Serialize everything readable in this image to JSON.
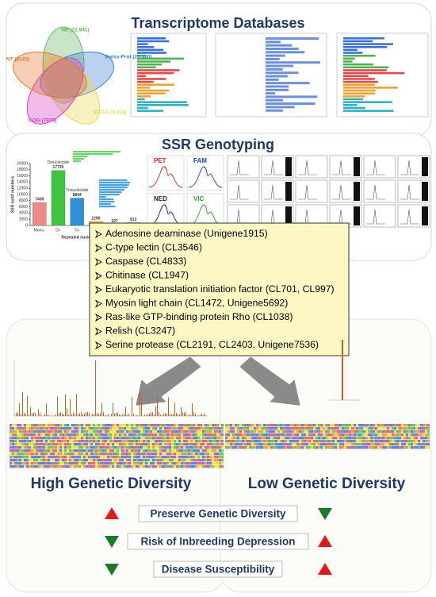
{
  "top_panel": {
    "title": "Transcriptome Databases",
    "venn": [
      {
        "label": "NR (22,941)",
        "color": "#5cb85c"
      },
      {
        "label": "Swiss-Prot (21,320)",
        "color": "#3a7fd5"
      },
      {
        "label": "KEGG (9,114)",
        "color": "#e8d84a"
      },
      {
        "label": "COG (7979)",
        "color": "#d640c8"
      },
      {
        "label": "NT (8123)",
        "color": "#e8762b"
      }
    ]
  },
  "ssr_panel": {
    "title": "SSR Genotyping",
    "dyes": [
      {
        "label": "PET",
        "color": "#e02020"
      },
      {
        "label": "FAM",
        "color": "#2040c0"
      },
      {
        "label": "NED",
        "color": "#222222"
      },
      {
        "label": "VIC",
        "color": "#30a030"
      }
    ]
  },
  "chart_data": {
    "type": "bar",
    "categories": [
      "Mono-",
      "Di-",
      "Tri-",
      "Quad-",
      "Penta-",
      "Hexa-"
    ],
    "values": [
      7400,
      17735,
      8844,
      1296,
      327,
      913
    ],
    "colors": [
      "#f08a8a",
      "#3ec43e",
      "#2f8fd8",
      "#f0c030",
      "#9a5ad0",
      "#e03030"
    ],
    "ylim": [
      0,
      20000
    ],
    "yticks": [
      0,
      2000,
      4000,
      6000,
      8000,
      10000,
      12000,
      14000,
      16000,
      18000,
      20000
    ],
    "xlabel": "Repeated nucleotide types",
    "ylabel": "SSR motif numbers",
    "annotations": [
      "Dinucleotide",
      "Trinucleotide"
    ]
  },
  "gene_list": [
    "Adenosine deaminase (Unigene1915)",
    "C-type lectin (CL3546)",
    "Caspase (CL4833)",
    "Chitinase (CL1947)",
    "Eukaryotic translation initiation factor (CL701, CL997)",
    "Myosin light chain (CL1472, Unigene5692)",
    "Ras-like GTP-binding protein Rho (CL1038)",
    "Relish (CL3247)",
    "Serine protease (CL2191, CL2403, Unigene7536)"
  ],
  "lower_panel": {
    "high_title": "High Genetic Diversity",
    "low_title": "Low Genetic Diversity",
    "comparisons": [
      {
        "text": "Preserve Genetic Diversity",
        "high": "up",
        "low": "down"
      },
      {
        "text": "Risk of Inbreeding Depression",
        "high": "down",
        "low": "up"
      },
      {
        "text": "Disease Susceptibility",
        "high": "down",
        "low": "up"
      }
    ]
  }
}
